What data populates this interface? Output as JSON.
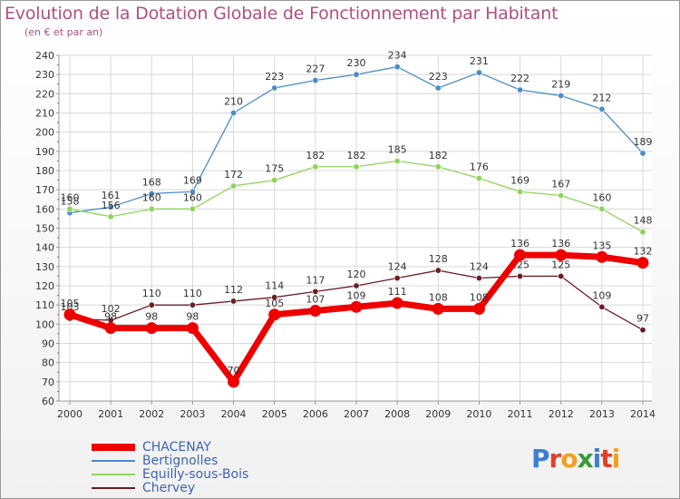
{
  "header": {
    "title": "Evolution de la Dotation Globale de Fonctionnement par Habitant",
    "subtitle": "(en € et par an)"
  },
  "logo": {
    "text": "Proxiti",
    "letters": [
      "P",
      "r",
      "o",
      "x",
      "i",
      "t",
      "i"
    ],
    "colors": [
      "#3a7fd0",
      "#e0402a",
      "#f0a020",
      "#3a9a3a",
      "#3a7fd0",
      "#e0402a",
      "#f0a020"
    ]
  },
  "chart_data": {
    "type": "line",
    "title": "Evolution de la Dotation Globale de Fonctionnement par Habitant",
    "subtitle": "(en € et par an)",
    "xlabel": "",
    "ylabel": "",
    "ylim": [
      60,
      240
    ],
    "ytick_step": 10,
    "grid": true,
    "legend_position": "bottom-left",
    "categories": [
      "2000",
      "2001",
      "2002",
      "2003",
      "2004",
      "2005",
      "2006",
      "2007",
      "2008",
      "2009",
      "2010",
      "2011",
      "2012",
      "2013",
      "2014"
    ],
    "series": [
      {
        "name": "Bertignolles",
        "color": "#4a8cc8",
        "values": [
          158,
          161,
          168,
          169,
          210,
          223,
          227,
          230,
          234,
          223,
          231,
          222,
          219,
          212,
          189
        ]
      },
      {
        "name": "Equilly-sous-Bois",
        "color": "#8fd45a",
        "values": [
          160,
          156,
          160,
          160,
          172,
          175,
          182,
          182,
          185,
          182,
          176,
          169,
          167,
          160,
          148
        ]
      },
      {
        "name": "Chervey",
        "color": "#6a1e24",
        "values": [
          103,
          102,
          110,
          110,
          112,
          114,
          117,
          120,
          124,
          128,
          124,
          125,
          125,
          109,
          97
        ]
      },
      {
        "name": "CHACENAY",
        "color": "#ee0000",
        "values": [
          105,
          98,
          98,
          98,
          70,
          105,
          107,
          109,
          111,
          108,
          108,
          136,
          136,
          135,
          132
        ]
      }
    ],
    "legend": [
      {
        "name": "CHACENAY",
        "color": "#ee0000",
        "thickness": "heavy"
      },
      {
        "name": "Bertignolles",
        "color": "#4a8cc8",
        "thickness": "thin"
      },
      {
        "name": "Equilly-sous-Bois",
        "color": "#8fd45a",
        "thickness": "thin"
      },
      {
        "name": "Chervey",
        "color": "#6a1e24",
        "thickness": "thin"
      }
    ]
  }
}
